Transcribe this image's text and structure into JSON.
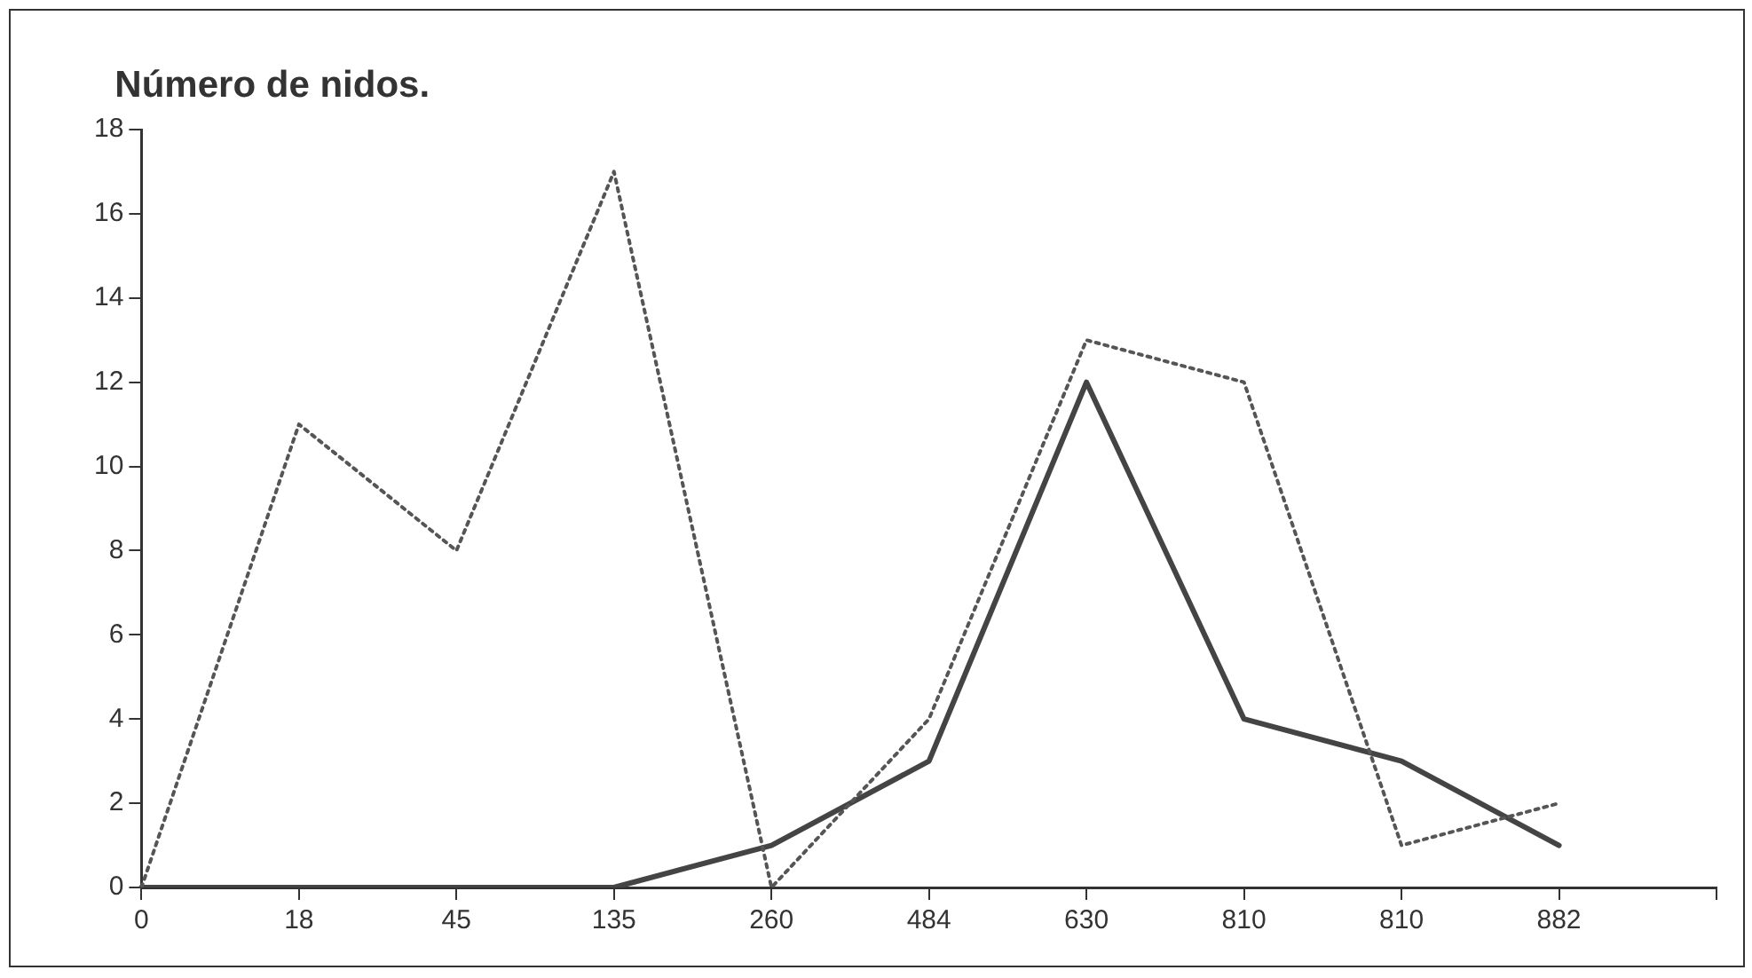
{
  "chart_data": {
    "type": "line",
    "title": "Número de nidos.",
    "categories": [
      "0",
      "18",
      "45",
      "135",
      "260",
      "484",
      "630",
      "810",
      "810",
      "882",
      null
    ],
    "series": [
      {
        "color": "#555555",
        "line_style": "dotted",
        "values": [
          0,
          11,
          8,
          17,
          0,
          4,
          13,
          12,
          1,
          2,
          null
        ]
      },
      {
        "color": "#444444",
        "line_style": "solid",
        "values": [
          0,
          0,
          0,
          0,
          1,
          3,
          12,
          4,
          3,
          1,
          null
        ]
      }
    ],
    "ylim": [
      0,
      18
    ],
    "yticks": [
      0,
      2,
      4,
      6,
      8,
      10,
      12,
      14,
      16,
      18
    ],
    "grid": false,
    "legend": false,
    "marker": "none"
  }
}
